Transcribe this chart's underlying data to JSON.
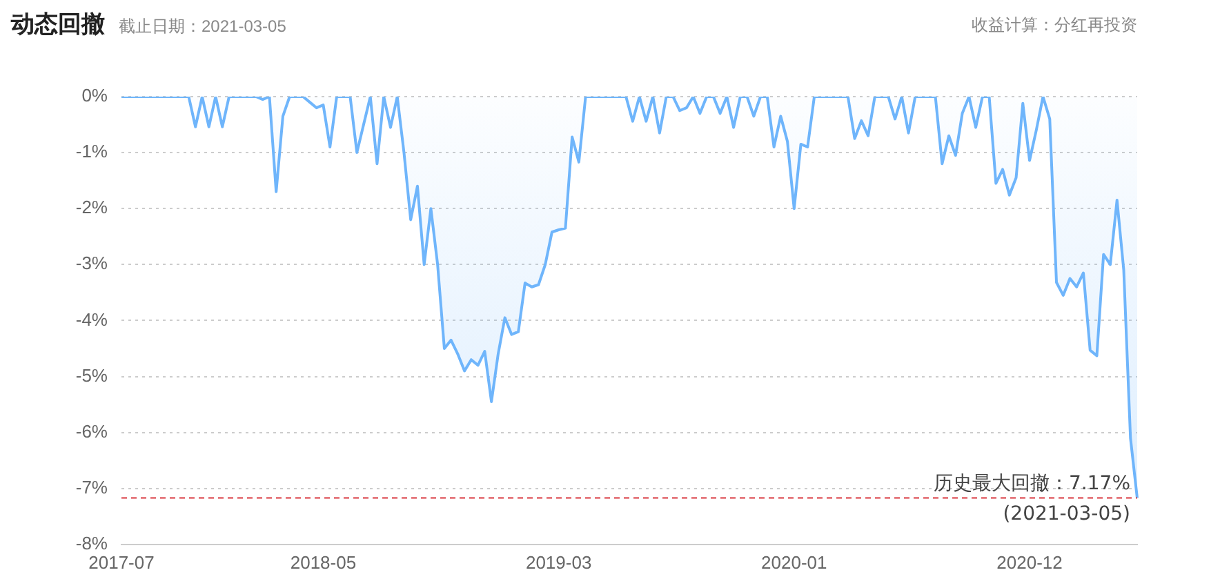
{
  "chart_data": {
    "type": "area",
    "title": "动态回撤",
    "subtitle": "截止日期：2021-03-05",
    "annotations": [
      "收益计算：分红再投资",
      {
        "text": "历史最大回撤：7.17%",
        "y": -7.17
      },
      {
        "text": "(2021-03-05)",
        "y": -7.17
      }
    ],
    "categories": [
      "2017-07",
      null,
      null,
      null,
      null,
      null,
      null,
      null,
      null,
      null,
      null,
      null,
      null,
      null,
      null,
      null,
      null,
      null,
      null,
      null,
      null,
      null,
      null,
      null,
      null,
      null,
      null,
      null,
      null,
      null,
      "2018-05",
      null,
      null,
      null,
      null,
      null,
      null,
      null,
      null,
      null,
      null,
      null,
      null,
      null,
      null,
      null,
      null,
      null,
      null,
      null,
      null,
      null,
      null,
      null,
      null,
      null,
      null,
      null,
      null,
      null,
      null,
      null,
      null,
      null,
      null,
      "2019-03",
      null,
      null,
      null,
      null,
      null,
      null,
      null,
      null,
      null,
      null,
      null,
      null,
      null,
      null,
      null,
      null,
      null,
      null,
      null,
      null,
      null,
      null,
      null,
      null,
      null,
      null,
      null,
      null,
      null,
      null,
      null,
      null,
      null,
      null,
      "2020-01",
      null,
      null,
      null,
      null,
      null,
      null,
      null,
      null,
      null,
      null,
      null,
      null,
      null,
      null,
      null,
      null,
      null,
      null,
      null,
      null,
      null,
      null,
      null,
      null,
      null,
      null,
      null,
      null,
      null,
      null,
      null,
      null,
      null,
      null,
      "2020-12",
      null,
      null,
      null,
      null,
      null,
      null,
      null,
      null,
      null,
      null,
      null,
      null,
      null,
      null,
      null,
      null
    ],
    "series": [
      {
        "color": "#6fb5fb",
        "values": [
          0,
          0,
          0,
          0,
          0,
          0,
          0,
          0,
          0,
          0,
          0,
          -0.54,
          0,
          -0.54,
          0,
          -0.54,
          0,
          0,
          0,
          0,
          0,
          -0.05,
          0,
          -1.7,
          -0.35,
          0,
          0,
          0,
          -0.1,
          -0.2,
          -0.15,
          -0.9,
          0,
          0,
          0,
          -1.0,
          -0.5,
          0,
          -1.2,
          0,
          -0.55,
          0,
          -1.0,
          -2.2,
          -1.6,
          -3.0,
          -2.0,
          -3.0,
          -4.5,
          -4.35,
          -4.6,
          -4.9,
          -4.7,
          -4.8,
          -4.55,
          -5.45,
          -4.6,
          -3.95,
          -4.25,
          -4.2,
          -3.33,
          -3.4,
          -3.36,
          -3.0,
          -2.42,
          -2.38,
          -2.35,
          -0.72,
          -1.17,
          0,
          0,
          0,
          0,
          0,
          0,
          0,
          -0.44,
          0,
          -0.44,
          0,
          -0.65,
          0,
          0,
          -0.25,
          -0.2,
          0,
          -0.3,
          0,
          0,
          -0.3,
          0,
          -0.55,
          0,
          0,
          -0.35,
          0,
          0,
          -0.9,
          -0.35,
          -0.8,
          -2.0,
          -0.85,
          -0.9,
          0,
          0,
          0,
          0,
          0,
          0,
          -0.75,
          -0.43,
          -0.7,
          0,
          0,
          0,
          -0.4,
          0,
          -0.65,
          0,
          0,
          0,
          0,
          -1.2,
          -0.7,
          -1.05,
          -0.3,
          0,
          -0.55,
          0,
          0,
          -1.55,
          -1.3,
          -1.76,
          -1.45,
          -0.12,
          -1.14,
          -0.6,
          0,
          -0.4,
          -3.32,
          -3.55,
          -3.25,
          -3.4,
          -3.15,
          -4.53,
          -4.63,
          -2.82,
          -3.0,
          -1.85,
          -3.1,
          -6.1,
          -7.17
        ]
      }
    ],
    "ylim": [
      -8,
      0
    ],
    "yticks": [
      {
        "value": 0,
        "label": "0%"
      },
      {
        "value": -1,
        "label": "-1%"
      },
      {
        "value": -2,
        "label": "-2%"
      },
      {
        "value": -3,
        "label": "-3%"
      },
      {
        "value": -4,
        "label": "-4%"
      },
      {
        "value": -5,
        "label": "-5%"
      },
      {
        "value": -6,
        "label": "-6%"
      },
      {
        "value": -7,
        "label": "-7%"
      },
      {
        "value": -8,
        "label": "-8%"
      }
    ],
    "grid": "y",
    "legend": false,
    "marker": "none",
    "ref_lines": [
      {
        "axis": "y",
        "value": -7.17,
        "color": "#d9363e",
        "line_style": "dashed"
      }
    ]
  }
}
